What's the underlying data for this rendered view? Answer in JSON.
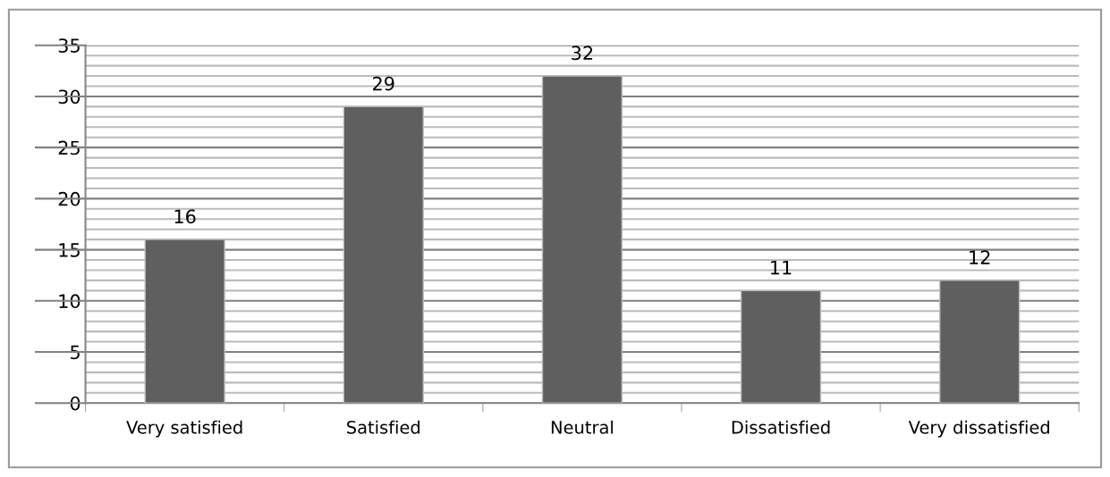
{
  "chart_data": {
    "type": "bar",
    "categories": [
      "Very satisfied",
      "Satisfied",
      "Neutral",
      "Dissatisfied",
      "Very dissatisfied"
    ],
    "values": [
      16,
      29,
      32,
      11,
      12
    ],
    "color": "#5f5f5f",
    "data_labels": true,
    "ylim": [
      0,
      35
    ],
    "yticks": [
      0,
      {
        "value": 1,
        "label": null
      },
      {
        "value": 2,
        "label": null
      },
      {
        "value": 3,
        "label": null
      },
      {
        "value": 4,
        "label": null
      },
      5,
      {
        "value": 6,
        "label": null
      },
      {
        "value": 7,
        "label": null
      },
      {
        "value": 8,
        "label": null
      },
      {
        "value": 9,
        "label": null
      },
      10,
      {
        "value": 11,
        "label": null
      },
      {
        "value": 12,
        "label": null
      },
      {
        "value": 13,
        "label": null
      },
      {
        "value": 14,
        "label": null
      },
      15,
      {
        "value": 16,
        "label": null
      },
      {
        "value": 17,
        "label": null
      },
      {
        "value": 18,
        "label": null
      },
      {
        "value": 19,
        "label": null
      },
      20,
      {
        "value": 21,
        "label": null
      },
      {
        "value": 22,
        "label": null
      },
      {
        "value": 23,
        "label": null
      },
      {
        "value": 24,
        "label": null
      },
      25,
      {
        "value": 26,
        "label": null
      },
      {
        "value": 27,
        "label": null
      },
      {
        "value": 28,
        "label": null
      },
      {
        "value": 29,
        "label": null
      },
      30,
      {
        "value": 31,
        "label": null
      },
      {
        "value": 32,
        "label": null
      },
      {
        "value": 33,
        "label": null
      },
      {
        "value": 34,
        "label": null
      },
      35
    ],
    "grid": "y",
    "legend": false
  }
}
